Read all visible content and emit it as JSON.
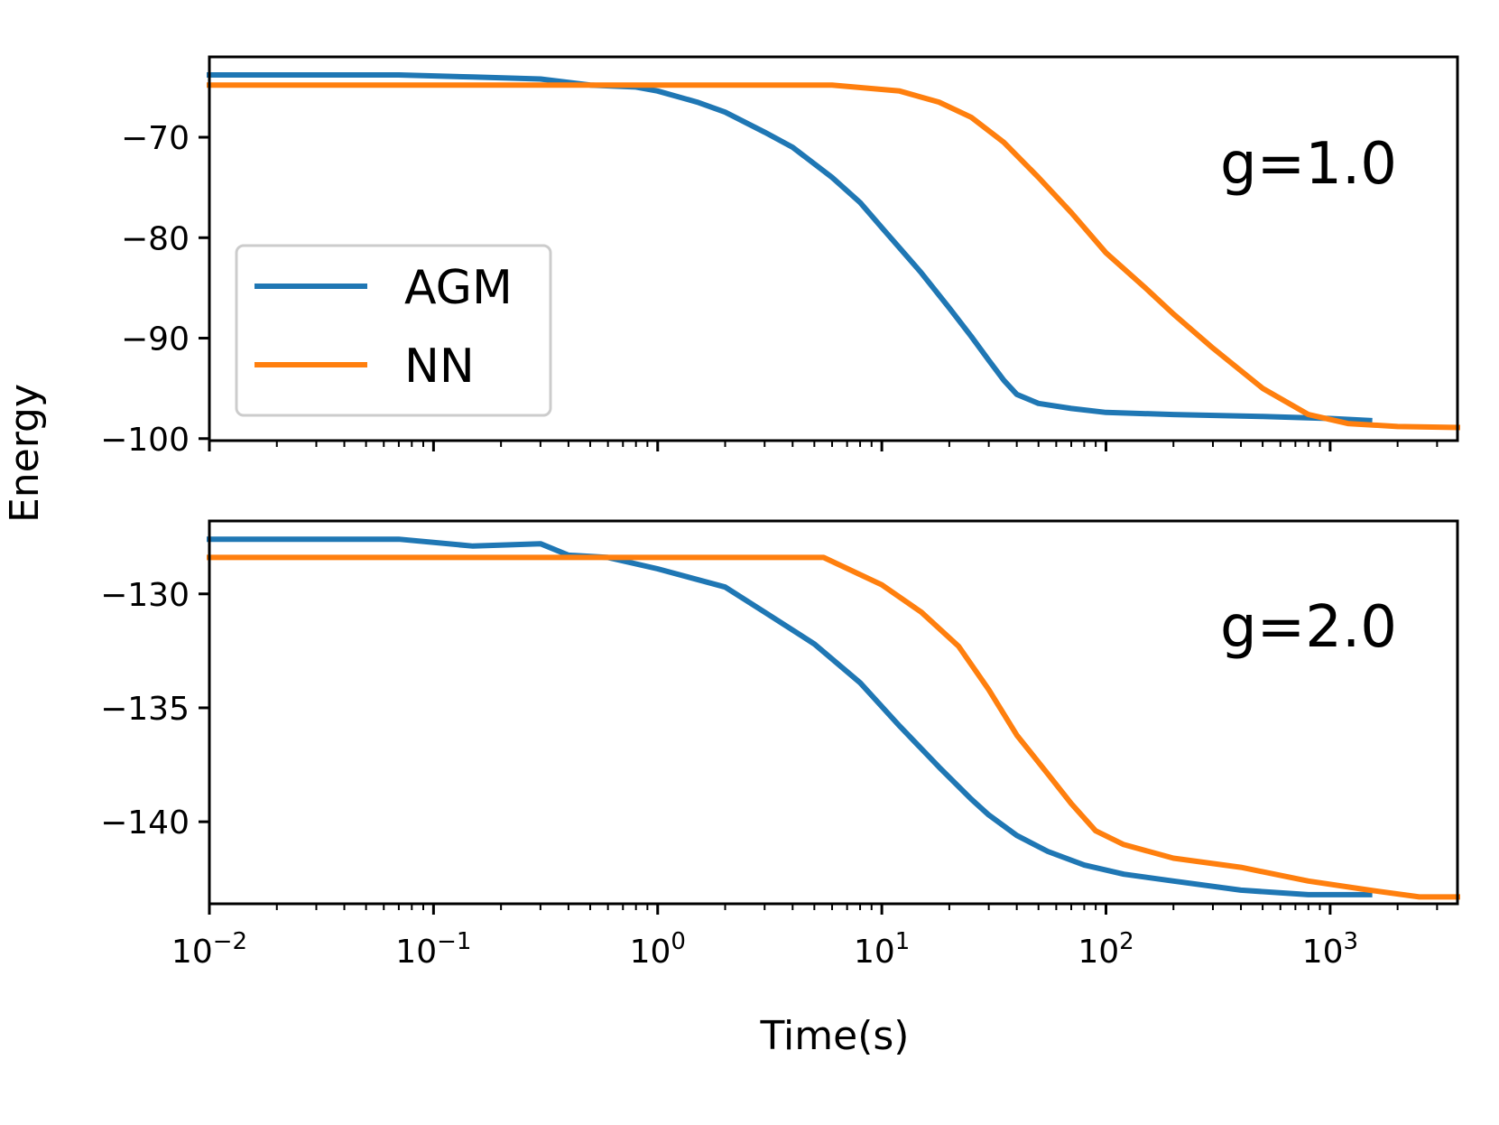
{
  "figure": {
    "ylabel": "Energy",
    "xlabel": "Time(s)"
  },
  "colors": {
    "AGM": "#1f77b4",
    "NN": "#ff7f0e"
  },
  "legend": {
    "entries": [
      "AGM",
      "NN"
    ],
    "placement": "center-left of top panel"
  },
  "chart_data": [
    {
      "type": "line",
      "annotation": "g=1.0",
      "xscale": "log",
      "xlim": [
        0.01,
        3700
      ],
      "ylim": [
        -100.2,
        -62.0
      ],
      "yticks": [
        -70,
        -80,
        -90,
        -100
      ],
      "ytick_labels": [
        "−70",
        "−80",
        "−90",
        "−100"
      ],
      "xticks": [
        0.01,
        0.1,
        1,
        10,
        100,
        1000
      ],
      "series": [
        {
          "name": "AGM",
          "x": [
            0.01,
            0.07,
            0.15,
            0.3,
            0.5,
            0.8,
            1.0,
            1.5,
            2.0,
            3.0,
            4.0,
            6.0,
            8.0,
            10.0,
            15.0,
            20.0,
            25.0,
            30.0,
            35.0,
            40.0,
            50.0,
            70.0,
            100.0,
            200.0,
            500.0,
            1000.0,
            1500.0
          ],
          "y": [
            -63.8,
            -63.8,
            -64.0,
            -64.2,
            -64.8,
            -65.0,
            -65.4,
            -66.5,
            -67.5,
            -69.5,
            -71.0,
            -74.0,
            -76.5,
            -79.0,
            -83.5,
            -87.0,
            -89.8,
            -92.2,
            -94.2,
            -95.6,
            -96.5,
            -97.0,
            -97.4,
            -97.6,
            -97.8,
            -98.0,
            -98.2
          ]
        },
        {
          "name": "NN",
          "x": [
            0.01,
            6.0,
            12.0,
            18.0,
            25.0,
            35.0,
            50.0,
            70.0,
            100.0,
            150.0,
            200.0,
            300.0,
            500.0,
            800.0,
            1200.0,
            2000.0,
            3700.0
          ],
          "y": [
            -64.8,
            -64.8,
            -65.4,
            -66.5,
            -68.0,
            -70.5,
            -74.0,
            -77.5,
            -81.5,
            -85.0,
            -87.6,
            -91.0,
            -95.0,
            -97.6,
            -98.5,
            -98.8,
            -98.9
          ]
        }
      ]
    },
    {
      "type": "line",
      "annotation": "g=2.0",
      "xscale": "log",
      "xlim": [
        0.01,
        3700
      ],
      "ylim": [
        -143.6,
        -126.8
      ],
      "yticks": [
        -130,
        -135,
        -140
      ],
      "ytick_labels": [
        "−130",
        "−135",
        "−140"
      ],
      "xticks": [
        0.01,
        0.1,
        1,
        10,
        100,
        1000
      ],
      "xtick_labels": [
        "10−2",
        "10−1",
        "100",
        "101",
        "102",
        "103"
      ],
      "series": [
        {
          "name": "AGM",
          "x": [
            0.01,
            0.07,
            0.15,
            0.3,
            0.4,
            0.6,
            1.0,
            2.0,
            3.0,
            5.0,
            8.0,
            12.0,
            18.0,
            25.0,
            30.0,
            40.0,
            55.0,
            80.0,
            120.0,
            200.0,
            400.0,
            800.0,
            1500.0
          ],
          "y": [
            -127.6,
            -127.6,
            -127.9,
            -127.8,
            -128.3,
            -128.4,
            -128.9,
            -129.7,
            -130.8,
            -132.2,
            -133.9,
            -135.8,
            -137.6,
            -139.0,
            -139.7,
            -140.6,
            -141.3,
            -141.9,
            -142.3,
            -142.6,
            -143.0,
            -143.2,
            -143.2
          ]
        },
        {
          "name": "NN",
          "x": [
            0.01,
            5.5,
            10.0,
            15.0,
            22.0,
            30.0,
            40.0,
            55.0,
            70.0,
            90.0,
            120.0,
            200.0,
            400.0,
            800.0,
            1500.0,
            2500.0,
            3700.0
          ],
          "y": [
            -128.4,
            -128.4,
            -129.6,
            -130.8,
            -132.3,
            -134.2,
            -136.2,
            -137.9,
            -139.2,
            -140.4,
            -141.0,
            -141.6,
            -142.0,
            -142.6,
            -143.0,
            -143.3,
            -143.3
          ]
        }
      ]
    }
  ]
}
